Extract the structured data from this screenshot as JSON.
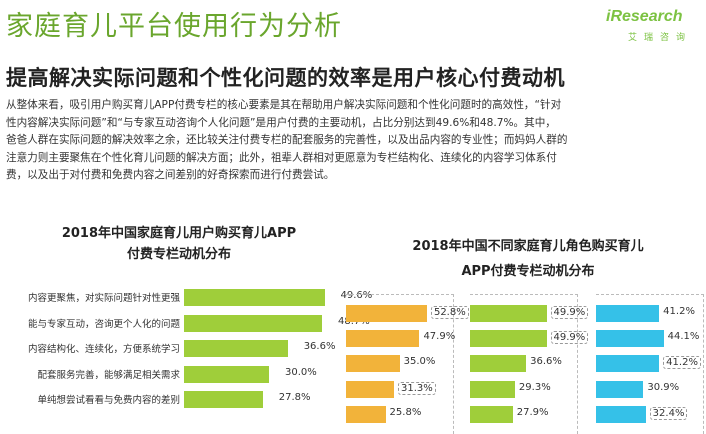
{
  "header": {
    "title": "家庭育儿平台使用行为分析",
    "logo_text": "iResearch",
    "logo_sub": "艾瑞咨询"
  },
  "subtitle": "提高解决实际问题和个性化问题的效率是用户核心付费动机",
  "body": [
    "从整体来看，吸引用户购买育儿APP付费专栏的核心要素是其在帮助用户解决实际问题和个性化问题时的高效性，“针对",
    "性内容解决实际问题”和“与专家互动咨询个人化问题”是用户付费的主要动机，占比分别达到49.6%和48.7%。其中，",
    "爸爸人群在实际问题的解决效率之余，还比较关注付费专栏的配套服务的完善性，以及出品内容的专业性；而妈妈人群的",
    "注意力则主要聚焦在个性化育儿问题的解决方面；此外，祖辈人群相对更愿意为专栏结构化、连续化的内容学习体系付",
    "费，以及出于对付费和免费内容之间差别的好奇探索而进行付费尝试。"
  ],
  "chart_data": [
    {
      "type": "bar",
      "orientation": "horizontal",
      "title_lines": [
        "2018年中国家庭育儿用户购买育儿APP",
        "付费专栏动机分布"
      ],
      "categories": [
        "内容更聚焦，对实际问题针对性更强",
        "能与专家互动，咨询更个人化的问题",
        "内容结构化、连续化，方便系统学习",
        "配套服务完善，能够满足相关需求",
        "单纯想尝试看看与免费内容的差别"
      ],
      "values": [
        49.6,
        48.7,
        36.6,
        30.0,
        27.8
      ],
      "labels": [
        "49.6%",
        "48.7%",
        "36.6%",
        "30.0%",
        "27.8%"
      ],
      "color": "#9fce3a",
      "xlim": [
        0,
        60
      ]
    },
    {
      "type": "bar",
      "orientation": "horizontal",
      "title_lines": [
        "2018年中国不同家庭育儿角色购买育儿",
        "APP付费专栏动机分布"
      ],
      "categories": [
        "内容更聚焦，对实际问题针对性更强",
        "能与专家互动，咨询更个人化的问题",
        "内容结构化、连续化，方便系统学习",
        "配套服务完善，能够满足相关需求",
        "单纯想尝试看看与免费内容的差别"
      ],
      "xlim": [
        0,
        60
      ],
      "series": [
        {
          "values": [
            52.8,
            47.9,
            35.0,
            31.3,
            25.8
          ],
          "labels": [
            "52.8%",
            "47.9%",
            "35.0%",
            "31.3%",
            "25.8%"
          ],
          "boxed": [
            true,
            false,
            false,
            true,
            false
          ],
          "color": "#f2b33a"
        },
        {
          "values": [
            49.9,
            49.9,
            36.6,
            29.3,
            27.9
          ],
          "labels": [
            "49.9%",
            "49.9%",
            "36.6%",
            "29.3%",
            "27.9%"
          ],
          "boxed": [
            true,
            true,
            false,
            false,
            false
          ],
          "color": "#9fce3a"
        },
        {
          "values": [
            41.2,
            44.1,
            41.2,
            30.9,
            32.4
          ],
          "labels": [
            "41.2%",
            "44.1%",
            "41.2%",
            "30.9%",
            "32.4%"
          ],
          "boxed": [
            false,
            false,
            true,
            false,
            true
          ],
          "color": "#35c1e8"
        }
      ]
    }
  ]
}
